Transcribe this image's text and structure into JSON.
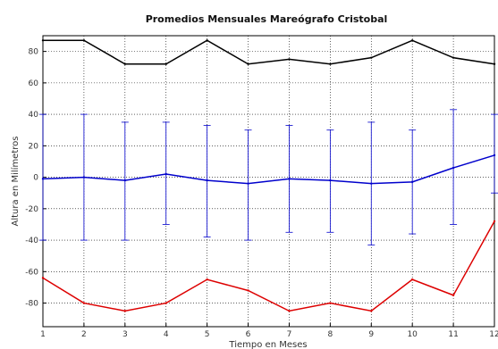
{
  "chart_data": {
    "type": "line",
    "title": "Promedios Mensuales Mareógrafo Cristobal",
    "xlabel": "Tiempo en Meses",
    "ylabel": "Altura en Milímetros",
    "x": [
      1,
      2,
      3,
      4,
      5,
      6,
      7,
      8,
      9,
      10,
      11,
      12
    ],
    "xlim": [
      1,
      12
    ],
    "ylim": [
      -95,
      90
    ],
    "xticks": [
      1,
      2,
      3,
      4,
      5,
      6,
      7,
      8,
      9,
      10,
      11,
      12
    ],
    "yticks": [
      80,
      60,
      40,
      20,
      0,
      -20,
      -40,
      -60,
      -80
    ],
    "grid": true,
    "series": [
      {
        "color": "#000000",
        "values": [
          87,
          87,
          72,
          72,
          87,
          72,
          75,
          72,
          76,
          87,
          76,
          72
        ]
      },
      {
        "color": "#0000cc",
        "values": [
          -1,
          0,
          -2,
          2,
          -2,
          -4,
          -1,
          -2,
          -4,
          -3,
          6,
          14
        ],
        "error_upper": [
          40,
          40,
          35,
          35,
          33,
          30,
          33,
          30,
          35,
          30,
          43,
          40
        ],
        "error_lower": [
          -40,
          -40,
          -40,
          -30,
          -38,
          -40,
          -35,
          -35,
          -43,
          -36,
          -30,
          -10
        ]
      },
      {
        "color": "#dd0000",
        "values": [
          -64,
          -80,
          -85,
          -80,
          -65,
          -72,
          -85,
          -80,
          -85,
          -65,
          -75,
          -28
        ]
      }
    ]
  }
}
